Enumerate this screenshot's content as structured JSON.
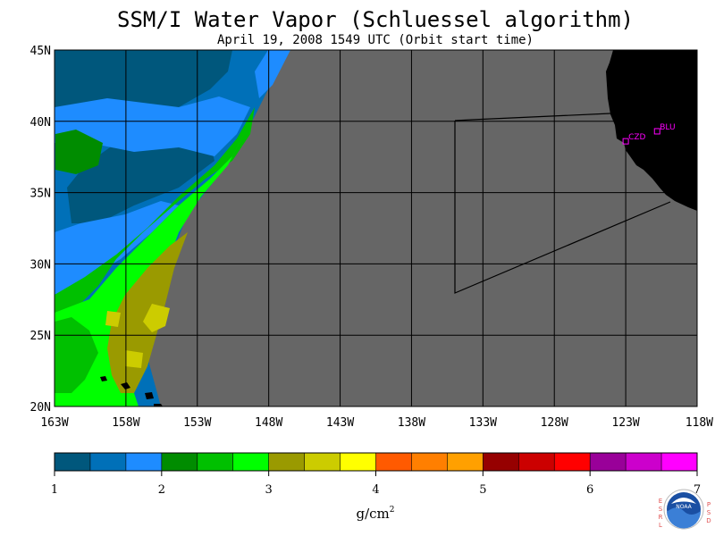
{
  "header": {
    "title": "SSM/I Water Vapor (Schluessel algorithm)",
    "subtitle": "April 19, 2008  1549 UTC  (Orbit start time)"
  },
  "chart_data": {
    "type": "heatmap",
    "title": "SSM/I Water Vapor (Schluessel algorithm)",
    "subtitle": "April 19, 2008  1549 UTC  (Orbit start time)",
    "lat_ticks": [
      "45N",
      "40N",
      "35N",
      "30N",
      "25N",
      "20N"
    ],
    "lon_ticks": [
      "163W",
      "158W",
      "153W",
      "148W",
      "143W",
      "138W",
      "133W",
      "128W",
      "123W",
      "118W"
    ],
    "lon_range": [
      -163,
      -118
    ],
    "lat_range": [
      20,
      45
    ],
    "grid": true,
    "colorbar": {
      "min": 1,
      "max": 7,
      "step": 0.333,
      "tick_labels": [
        "1",
        "2",
        "3",
        "4",
        "5",
        "6",
        "7"
      ],
      "unit": "g/cm",
      "unit_exp": "2",
      "colors": [
        "#00577c",
        "#0070b8",
        "#1e8cff",
        "#008c00",
        "#00c000",
        "#00ff00",
        "#9a9a00",
        "#cccc00",
        "#ffff00",
        "#ff5a00",
        "#ff7f00",
        "#ffa000",
        "#960000",
        "#cc0000",
        "#ff0000",
        "#990099",
        "#cc00cc",
        "#ff00ff"
      ]
    },
    "stations": [
      {
        "name": "CZD",
        "lon": -123.0,
        "lat": 38.6
      },
      {
        "name": "BLU",
        "lon": -120.8,
        "lat": 39.3
      }
    ],
    "no_data_color": "#666666",
    "land_color": "#000000"
  },
  "logo": {
    "letters_left": [
      "E",
      "S",
      "R",
      "L"
    ],
    "letters_right": [
      "P",
      "S",
      "D"
    ],
    "name": "noaa-logo-icon",
    "text": "NOAA"
  }
}
